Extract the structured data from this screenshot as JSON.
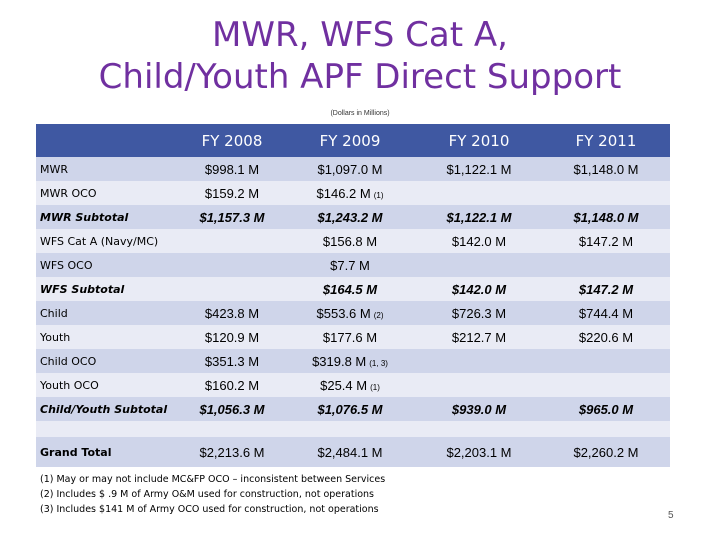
{
  "title_line1": "MWR, WFS Cat A,",
  "title_line2": "Child/Youth APF Direct Support",
  "subtitle": "(Dollars in Millions)",
  "columns": [
    "FY 2008",
    "FY 2009",
    "FY 2010",
    "FY 2011"
  ],
  "rows": {
    "mwr": {
      "label": "MWR",
      "v": [
        "$998.1 M",
        "$1,097.0 M",
        "$1,122.1 M",
        "$1,148.0 M"
      ],
      "n": [
        "",
        "",
        "",
        ""
      ]
    },
    "mwr_oco": {
      "label": "MWR OCO",
      "v": [
        "$159.2 M",
        "$146.2 M",
        "",
        ""
      ],
      "n": [
        "",
        "(1)",
        "",
        ""
      ]
    },
    "mwr_sub": {
      "label": "MWR Subtotal",
      "v": [
        "$1,157.3 M",
        "$1,243.2 M",
        "$1,122.1 M",
        "$1,148.0 M"
      ],
      "n": [
        "",
        "",
        "",
        ""
      ]
    },
    "wfs": {
      "label": "WFS Cat A (Navy/MC)",
      "v": [
        "",
        "$156.8 M",
        "$142.0 M",
        "$147.2 M"
      ],
      "n": [
        "",
        "",
        "",
        ""
      ]
    },
    "wfs_oco": {
      "label": "WFS OCO",
      "v": [
        "",
        "$7.7 M",
        "",
        ""
      ],
      "n": [
        "",
        "",
        "",
        ""
      ]
    },
    "wfs_sub": {
      "label": "WFS Subtotal",
      "v": [
        "",
        "$164.5 M",
        "$142.0 M",
        "$147.2 M"
      ],
      "n": [
        "",
        "",
        "",
        ""
      ]
    },
    "child": {
      "label": "Child",
      "v": [
        "$423.8 M",
        "$553.6 M",
        "$726.3 M",
        "$744.4 M"
      ],
      "n": [
        "",
        "(2)",
        "",
        ""
      ]
    },
    "youth": {
      "label": "Youth",
      "v": [
        "$120.9 M",
        "$177.6 M",
        "$212.7 M",
        "$220.6 M"
      ],
      "n": [
        "",
        "",
        "",
        ""
      ]
    },
    "child_oco": {
      "label": "Child OCO",
      "v": [
        "$351.3 M",
        "$319.8 M",
        "",
        ""
      ],
      "n": [
        "",
        "(1, 3)",
        "",
        ""
      ]
    },
    "youth_oco": {
      "label": "Youth OCO",
      "v": [
        "$160.2 M",
        "$25.4 M",
        "",
        ""
      ],
      "n": [
        "",
        "(1)",
        "",
        ""
      ]
    },
    "cy_sub": {
      "label": "Child/Youth Subtotal",
      "v": [
        "$1,056.3 M",
        "$1,076.5 M",
        "$939.0 M",
        "$965.0 M"
      ],
      "n": [
        "",
        "",
        "",
        ""
      ]
    },
    "grand": {
      "label": "Grand Total",
      "v": [
        "$2,213.6 M",
        "$2,484.1 M",
        "$2,203.1 M",
        "$2,260.2 M"
      ],
      "n": [
        "",
        "",
        "",
        ""
      ]
    }
  },
  "footnotes": [
    "(1) May or may not include MC&FP OCO – inconsistent between Services",
    "(2) Includes $ .9 M of Army O&M used for construction, not operations",
    "(3) Includes $141 M of Army OCO used for construction, not operations"
  ],
  "page_number": "5"
}
